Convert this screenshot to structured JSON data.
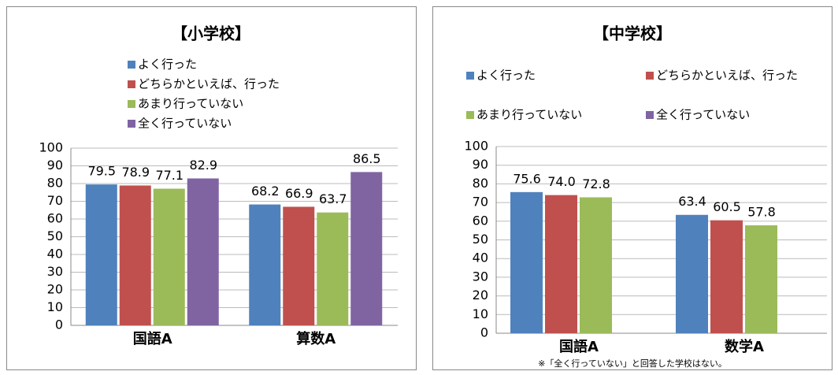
{
  "chart_data": [
    {
      "type": "bar",
      "title": "【小学校】",
      "categories": [
        "国語A",
        "算数A"
      ],
      "series": [
        {
          "name": "よく行った",
          "color": "#4f81bd",
          "values": [
            79.5,
            68.2
          ]
        },
        {
          "name": "どちらかといえば、行った",
          "color": "#c0504d",
          "values": [
            78.9,
            66.9
          ]
        },
        {
          "name": "あまり行っていない",
          "color": "#9bbb59",
          "values": [
            77.1,
            63.7
          ]
        },
        {
          "name": "全く行っていない",
          "color": "#8064a2",
          "values": [
            82.9,
            86.5
          ]
        }
      ],
      "ylim": [
        0,
        100
      ],
      "yticks": [
        0,
        10,
        20,
        30,
        40,
        50,
        60,
        70,
        80,
        90,
        100
      ],
      "grid": true
    },
    {
      "type": "bar",
      "title": "【中学校】",
      "categories": [
        "国語A",
        "数学A"
      ],
      "series": [
        {
          "name": "よく行った",
          "color": "#4f81bd",
          "values": [
            75.6,
            63.4
          ]
        },
        {
          "name": "どちらかといえば、行った",
          "color": "#c0504d",
          "values": [
            74.0,
            60.5
          ],
          "value_labels": [
            "74.0",
            "60.5"
          ]
        },
        {
          "name": "あまり行っていない",
          "color": "#9bbb59",
          "values": [
            72.8,
            57.8
          ]
        },
        {
          "name": "全く行っていない",
          "color": "#8064a2",
          "values": [
            null,
            null
          ]
        }
      ],
      "annotation": "※「全く行っていない」と回答した学校はない。",
      "ylim": [
        0,
        100
      ],
      "yticks": [
        0,
        10,
        20,
        30,
        40,
        50,
        60,
        70,
        80,
        90,
        100
      ],
      "grid": true
    }
  ]
}
